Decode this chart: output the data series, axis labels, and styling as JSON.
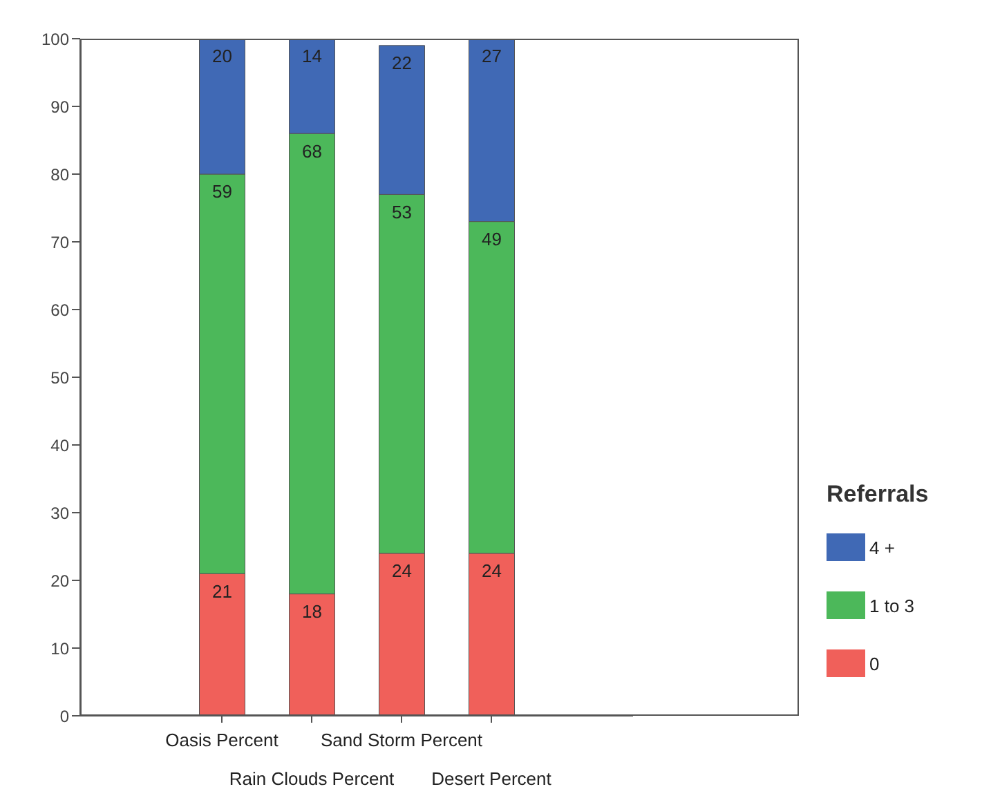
{
  "chart_data": {
    "type": "bar",
    "stacked": true,
    "categories": [
      "Oasis Percent",
      "Rain Clouds Percent",
      "Sand Storm Percent",
      "Desert Percent"
    ],
    "series": [
      {
        "name": "0",
        "color": "#f0605a",
        "values": [
          21,
          18,
          24,
          24
        ]
      },
      {
        "name": "1 to 3",
        "color": "#4cb85a",
        "values": [
          59,
          68,
          53,
          49
        ]
      },
      {
        "name": "4 +",
        "color": "#4069b5",
        "values": [
          20,
          14,
          22,
          27
        ]
      }
    ],
    "ylim": [
      0,
      100
    ],
    "yticks": [
      0,
      10,
      20,
      30,
      40,
      50,
      60,
      70,
      80,
      90,
      100
    ],
    "data_labels": true,
    "legend": "right",
    "legend_title": "Referrals"
  }
}
